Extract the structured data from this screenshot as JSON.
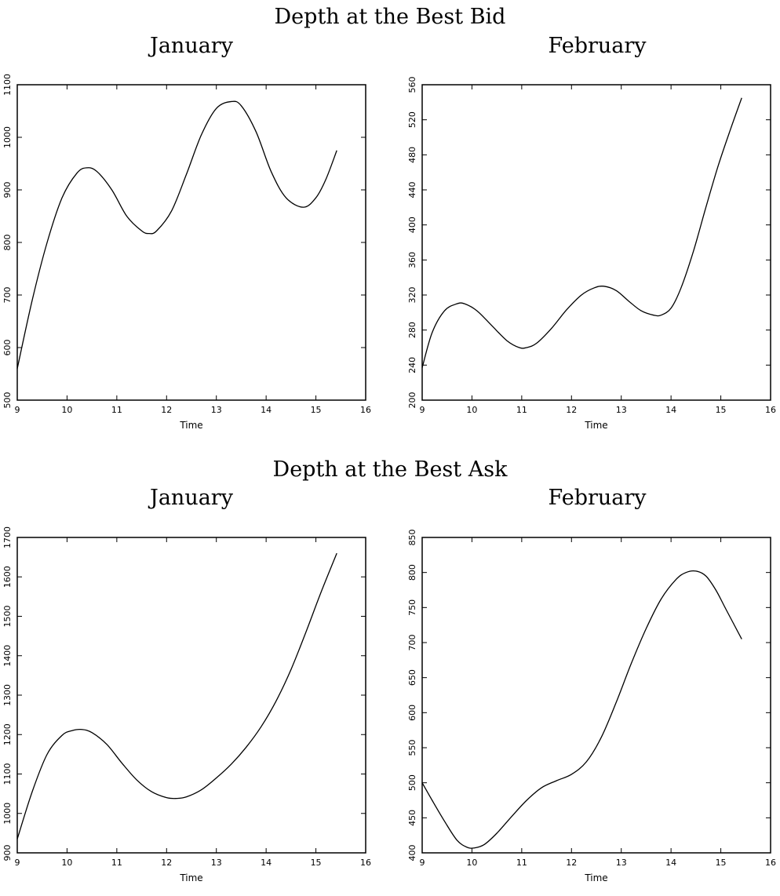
{
  "sections": [
    {
      "title": "Depth at the Best Bid"
    },
    {
      "title": "Depth at the Best Ask"
    }
  ],
  "colors": {
    "line": "#000000",
    "axes": "#000000",
    "background": "#ffffff"
  },
  "chart_data": [
    {
      "type": "line",
      "section": "Depth at the Best Bid",
      "title": "January",
      "xlabel": "Time",
      "ylabel": "",
      "xlim": [
        9,
        16
      ],
      "ylim": [
        500,
        1100
      ],
      "xticks": [
        9,
        10,
        11,
        12,
        13,
        14,
        15,
        16
      ],
      "yticks": [
        500,
        600,
        700,
        800,
        900,
        1000,
        1100
      ],
      "grid": false,
      "series": [
        {
          "x": [
            9.0,
            9.3,
            9.6,
            9.9,
            10.2,
            10.4,
            10.6,
            10.9,
            11.2,
            11.5,
            11.65,
            11.8,
            12.1,
            12.4,
            12.7,
            13.0,
            13.3,
            13.5,
            13.8,
            14.1,
            14.4,
            14.75,
            15.0,
            15.2,
            15.42
          ],
          "y": [
            560,
            690,
            800,
            885,
            932,
            942,
            935,
            900,
            850,
            822,
            817,
            822,
            860,
            930,
            1005,
            1055,
            1068,
            1060,
            1010,
            935,
            885,
            867,
            885,
            920,
            975
          ]
        }
      ]
    },
    {
      "type": "line",
      "section": "Depth at the Best Bid",
      "title": "February",
      "xlabel": "Time",
      "ylabel": "",
      "xlim": [
        9,
        16
      ],
      "ylim": [
        200,
        560
      ],
      "xticks": [
        9,
        10,
        11,
        12,
        13,
        14,
        15,
        16
      ],
      "yticks": [
        200,
        240,
        280,
        320,
        360,
        400,
        440,
        480,
        520,
        560
      ],
      "grid": false,
      "series": [
        {
          "x": [
            9.0,
            9.2,
            9.45,
            9.7,
            9.85,
            10.1,
            10.4,
            10.7,
            10.95,
            11.1,
            11.3,
            11.6,
            11.9,
            12.2,
            12.45,
            12.65,
            12.9,
            13.15,
            13.4,
            13.65,
            13.8,
            14.0,
            14.2,
            14.45,
            14.7,
            14.95,
            15.2,
            15.42
          ],
          "y": [
            237,
            277,
            302,
            310,
            310,
            302,
            285,
            268,
            260,
            260,
            265,
            282,
            303,
            320,
            328,
            330,
            325,
            313,
            302,
            297,
            297,
            305,
            328,
            370,
            420,
            468,
            510,
            545
          ]
        }
      ]
    },
    {
      "type": "line",
      "section": "Depth at the Best Ask",
      "title": "January",
      "xlabel": "Time",
      "ylabel": "",
      "xlim": [
        9,
        16
      ],
      "ylim": [
        900,
        1700
      ],
      "xticks": [
        9,
        10,
        11,
        12,
        13,
        14,
        15,
        16
      ],
      "yticks": [
        900,
        1000,
        1100,
        1200,
        1300,
        1400,
        1500,
        1600,
        1700
      ],
      "grid": false,
      "series": [
        {
          "x": [
            9.0,
            9.3,
            9.6,
            9.9,
            10.1,
            10.3,
            10.5,
            10.8,
            11.1,
            11.4,
            11.7,
            12.0,
            12.2,
            12.4,
            12.7,
            13.0,
            13.3,
            13.6,
            13.9,
            14.2,
            14.5,
            14.8,
            15.1,
            15.42
          ],
          "y": [
            935,
            1055,
            1150,
            1198,
            1210,
            1213,
            1205,
            1175,
            1128,
            1085,
            1055,
            1040,
            1038,
            1042,
            1060,
            1090,
            1125,
            1168,
            1220,
            1285,
            1365,
            1460,
            1560,
            1660
          ]
        }
      ]
    },
    {
      "type": "line",
      "section": "Depth at the Best Ask",
      "title": "February",
      "xlabel": "Time",
      "ylabel": "",
      "xlim": [
        9,
        16
      ],
      "ylim": [
        400,
        850
      ],
      "xticks": [
        9,
        10,
        11,
        12,
        13,
        14,
        15,
        16
      ],
      "yticks": [
        400,
        450,
        500,
        550,
        600,
        650,
        700,
        750,
        800,
        850
      ],
      "grid": false,
      "series": [
        {
          "x": [
            9.0,
            9.2,
            9.45,
            9.7,
            9.9,
            10.05,
            10.25,
            10.5,
            10.8,
            11.1,
            11.4,
            11.7,
            12.0,
            12.3,
            12.6,
            12.9,
            13.2,
            13.5,
            13.8,
            14.1,
            14.3,
            14.5,
            14.7,
            14.9,
            15.1,
            15.42
          ],
          "y": [
            500,
            475,
            445,
            418,
            408,
            407,
            412,
            428,
            452,
            475,
            493,
            503,
            512,
            530,
            565,
            615,
            670,
            720,
            762,
            790,
            800,
            802,
            795,
            775,
            748,
            705
          ]
        }
      ]
    }
  ]
}
